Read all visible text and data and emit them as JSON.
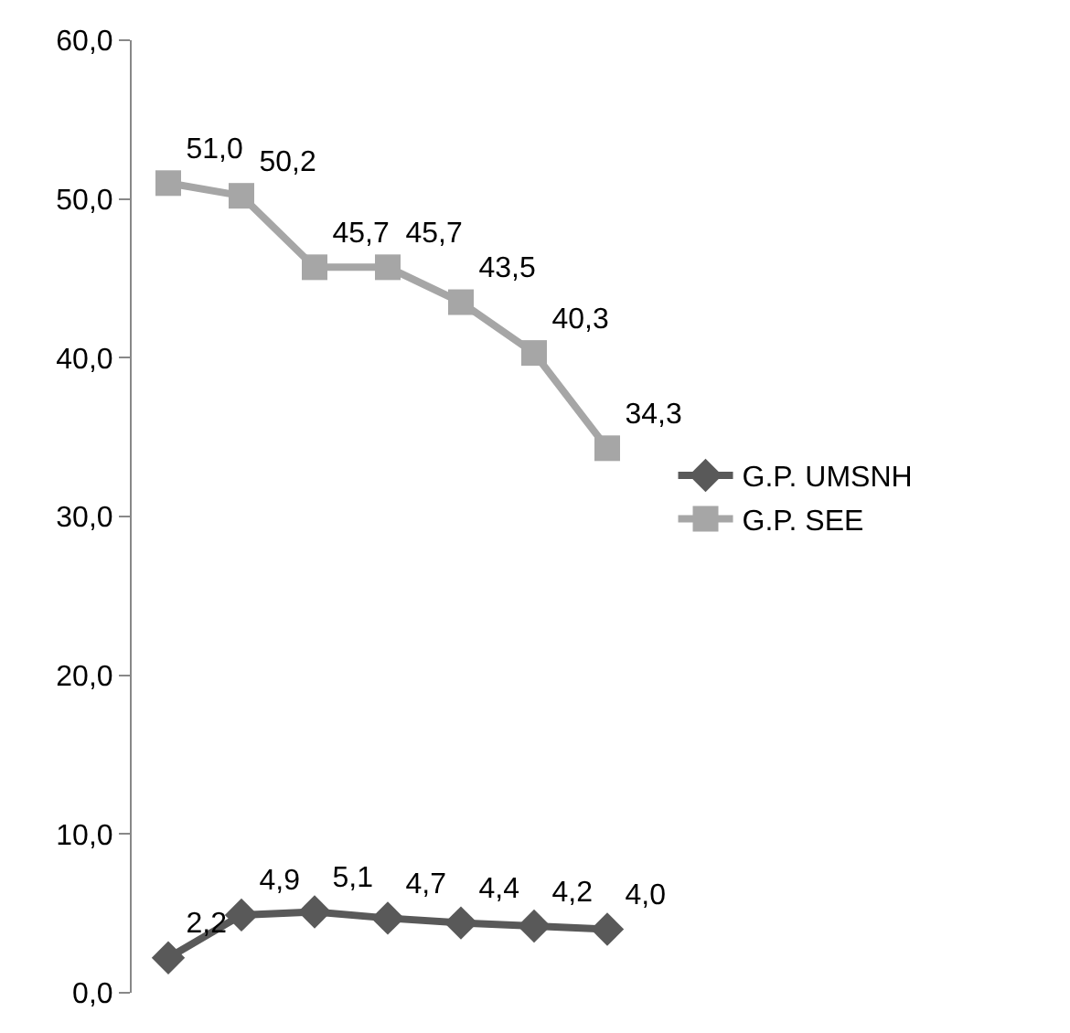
{
  "chart_data": {
    "type": "line",
    "categories": [
      null,
      null,
      null,
      null,
      null,
      null,
      null
    ],
    "tick_labels": "y",
    "ylim": [
      0,
      60
    ],
    "yticks": [
      {
        "value": 0,
        "label": "0,0"
      },
      {
        "value": 10,
        "label": "10,0"
      },
      {
        "value": 20,
        "label": "20,0"
      },
      {
        "value": 30,
        "label": "30,0"
      },
      {
        "value": 40,
        "label": "40,0"
      },
      {
        "value": 50,
        "label": "50,0"
      },
      {
        "value": 60,
        "label": "60,0"
      }
    ],
    "grid": false,
    "legend": "right",
    "line_style": "solid",
    "series": [
      {
        "name": "G.P. UMSNH",
        "color": "#595959",
        "marker": "diamond",
        "values": [
          2.2,
          4.9,
          5.1,
          4.7,
          4.4,
          4.2,
          4.0
        ],
        "value_labels": [
          "2,2",
          "4,9",
          "5,1",
          "4,7",
          "4,4",
          "4,2",
          "4,0"
        ]
      },
      {
        "name": "G.P. SEE",
        "color": "#a6a6a6",
        "marker": "square",
        "values": [
          51.0,
          50.2,
          45.7,
          45.7,
          43.5,
          40.3,
          34.3
        ],
        "value_labels": [
          "51,0",
          "50,2",
          "45,7",
          "45,7",
          "43,5",
          "40,3",
          "34,3"
        ]
      }
    ]
  }
}
